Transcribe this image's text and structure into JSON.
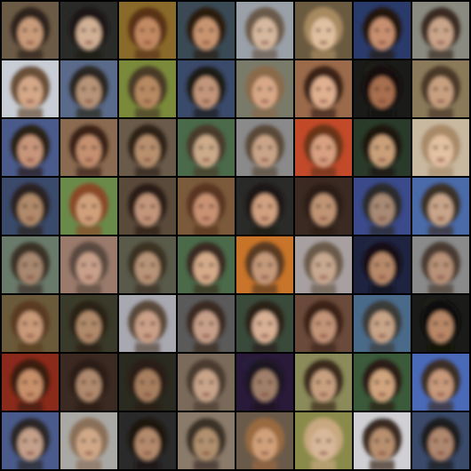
{
  "grid": {
    "rows": 8,
    "columns": 8,
    "tiles": [
      {
        "bg": "#6b5a45",
        "skin": "#c99b7a",
        "hair": "#2e241c"
      },
      {
        "bg": "#2a2a28",
        "skin": "#d2b095",
        "hair": "#1c1814"
      },
      {
        "bg": "#8a6a2a",
        "skin": "#c28a62",
        "hair": "#5a3218"
      },
      {
        "bg": "#3a4a55",
        "skin": "#c89470",
        "hair": "#2a1a10"
      },
      {
        "bg": "#9aa0a8",
        "skin": "#d6b89e",
        "hair": "#6a5a48"
      },
      {
        "bg": "#6a5a40",
        "skin": "#e0c0a0",
        "hair": "#a88a60"
      },
      {
        "bg": "#2a3a6a",
        "skin": "#c89070",
        "hair": "#241810"
      },
      {
        "bg": "#8a8a80",
        "skin": "#caa58a",
        "hair": "#3a2c22"
      },
      {
        "bg": "#c8ccd4",
        "skin": "#d4a888",
        "hair": "#6a5038"
      },
      {
        "bg": "#5a6a8a",
        "skin": "#b89478",
        "hair": "#2a2620"
      },
      {
        "bg": "#7a8a3a",
        "skin": "#b88a62",
        "hair": "#4a3a28"
      },
      {
        "bg": "#3a4a6a",
        "skin": "#c2967a",
        "hair": "#1e1a18"
      },
      {
        "bg": "#7a7a6a",
        "skin": "#d8a888",
        "hair": "#8a6a48"
      },
      {
        "bg": "#9a6a4a",
        "skin": "#e0b090",
        "hair": "#3a2418"
      },
      {
        "bg": "#1a1a18",
        "skin": "#a87050",
        "hair": "#140e0a"
      },
      {
        "bg": "#8a7a5a",
        "skin": "#c8a080",
        "hair": "#4a3828"
      },
      {
        "bg": "#4a5a8a",
        "skin": "#c8967a",
        "hair": "#2a2018"
      },
      {
        "bg": "#8a6a50",
        "skin": "#c49070",
        "hair": "#3a2418"
      },
      {
        "bg": "#6a5a4a",
        "skin": "#b8906e",
        "hair": "#2e2218"
      },
      {
        "bg": "#4a6a4a",
        "skin": "#ccaa8a",
        "hair": "#4a3a2a"
      },
      {
        "bg": "#8a8a8a",
        "skin": "#caa488",
        "hair": "#5a4a38"
      },
      {
        "bg": "#c24a2a",
        "skin": "#d8a080",
        "hair": "#6a3418"
      },
      {
        "bg": "#2a3a2a",
        "skin": "#caa07a",
        "hair": "#1a1410"
      },
      {
        "bg": "#c8b8a0",
        "skin": "#e2c0a0",
        "hair": "#a88a68"
      },
      {
        "bg": "#3a4a6a",
        "skin": "#b08a6a",
        "hair": "#2a2220"
      },
      {
        "bg": "#6a8a4a",
        "skin": "#d0a07a",
        "hair": "#8a4a28"
      },
      {
        "bg": "#5a4a3a",
        "skin": "#c2967a",
        "hair": "#2a1c14"
      },
      {
        "bg": "#7a5a3a",
        "skin": "#c89272",
        "hair": "#5a3420"
      },
      {
        "bg": "#2a2a28",
        "skin": "#d0a080",
        "hair": "#1e1814"
      },
      {
        "bg": "#3a2a22",
        "skin": "#c09474",
        "hair": "#2a1c14"
      },
      {
        "bg": "#3a4a8a",
        "skin": "#a88a74",
        "hair": "#2a2a2a"
      },
      {
        "bg": "#4a6aa8",
        "skin": "#c8a48a",
        "hair": "#3a3028"
      },
      {
        "bg": "#6a7a6a",
        "skin": "#a88870",
        "hair": "#3a3028"
      },
      {
        "bg": "#9a7a6a",
        "skin": "#c8a08a",
        "hair": "#5a4a40"
      },
      {
        "bg": "#5a5a4a",
        "skin": "#b89478",
        "hair": "#3a3024"
      },
      {
        "bg": "#4a6a4a",
        "skin": "#d4aa8a",
        "hair": "#3a2c20"
      },
      {
        "bg": "#c8742a",
        "skin": "#c49a7a",
        "hair": "#5a3a22"
      },
      {
        "bg": "#a8a0a0",
        "skin": "#c8a890",
        "hair": "#6a5a4a"
      },
      {
        "bg": "#1e2440",
        "skin": "#b88a6a",
        "hair": "#141018"
      },
      {
        "bg": "#8a8a8a",
        "skin": "#b89278",
        "hair": "#4a3a30"
      },
      {
        "bg": "#6a5a3a",
        "skin": "#c89a78",
        "hair": "#5a3a20"
      },
      {
        "bg": "#3a3a2a",
        "skin": "#b08a6a",
        "hair": "#2a2014"
      },
      {
        "bg": "#a8a8b0",
        "skin": "#caa088",
        "hair": "#5a4a3a"
      },
      {
        "bg": "#5a5a5a",
        "skin": "#c8a08a",
        "hair": "#3a2a20"
      },
      {
        "bg": "#3a4a3a",
        "skin": "#d8b094",
        "hair": "#2a2018"
      },
      {
        "bg": "#6a4a3a",
        "skin": "#c29478",
        "hair": "#3a2418"
      },
      {
        "bg": "#4a6a8a",
        "skin": "#c8a488",
        "hair": "#3a3a38"
      },
      {
        "bg": "#1a1a18",
        "skin": "#b88868",
        "hair": "#0e0a08"
      },
      {
        "bg": "#8a2a1a",
        "skin": "#c8906a",
        "hair": "#3a1a10"
      },
      {
        "bg": "#3a2a22",
        "skin": "#b08a6e",
        "hair": "#2a1c14"
      },
      {
        "bg": "#2a2a20",
        "skin": "#a88060",
        "hair": "#2a1e14"
      },
      {
        "bg": "#7a6a5a",
        "skin": "#c8a48a",
        "hair": "#4a3a2e"
      },
      {
        "bg": "#2a1a3a",
        "skin": "#a0806a",
        "hair": "#1a1420"
      },
      {
        "bg": "#8a8a5a",
        "skin": "#c8a080",
        "hair": "#3a2a1c"
      },
      {
        "bg": "#3a5a3a",
        "skin": "#d0a47e",
        "hair": "#2a1e14"
      },
      {
        "bg": "#4a6ab8",
        "skin": "#c89a7c",
        "hair": "#3a2e28"
      },
      {
        "bg": "#4a5a8a",
        "skin": "#c4a08a",
        "hair": "#2a2628"
      },
      {
        "bg": "#aaa8a4",
        "skin": "#d0a888",
        "hair": "#8a7058"
      },
      {
        "bg": "#2a2a2a",
        "skin": "#b48a6c",
        "hair": "#1a1410"
      },
      {
        "bg": "#8a7a6a",
        "skin": "#b0906e",
        "hair": "#3a3028"
      },
      {
        "bg": "#6a5a4a",
        "skin": "#d0a07a",
        "hair": "#9a6a40"
      },
      {
        "bg": "#8a8a4a",
        "skin": "#d8b89a",
        "hair": "#c8a880"
      },
      {
        "bg": "#d0d0d4",
        "skin": "#b89070",
        "hair": "#3a2a20"
      },
      {
        "bg": "#3a4a6a",
        "skin": "#b08870",
        "hair": "#1e1a1a"
      }
    ]
  }
}
